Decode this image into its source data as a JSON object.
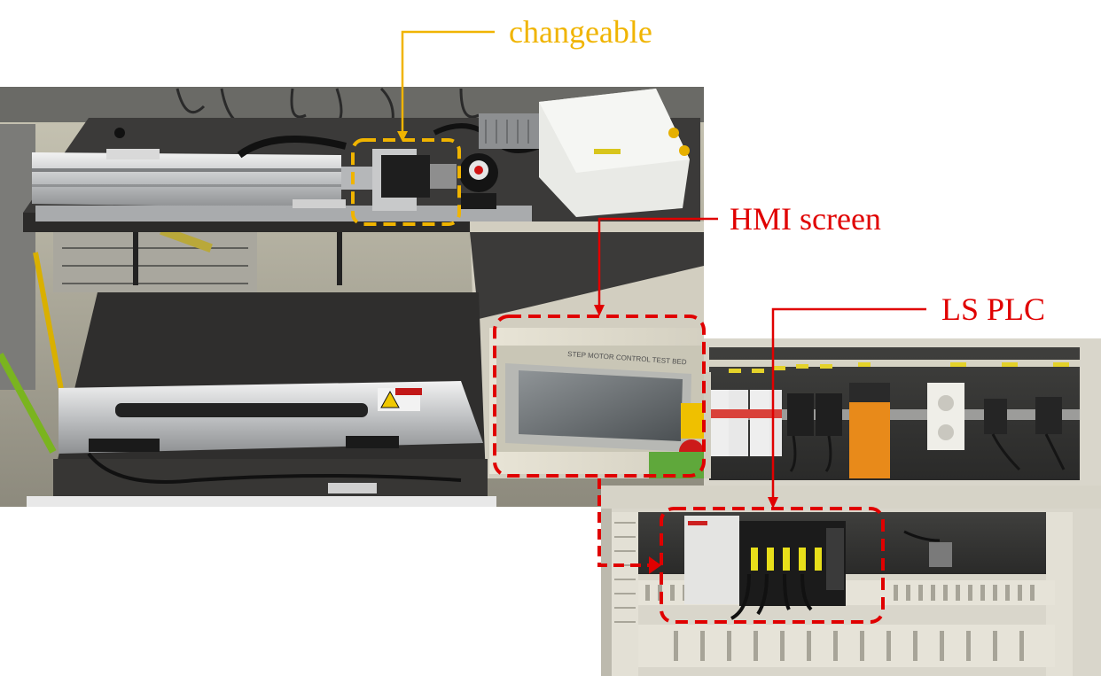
{
  "annotations": {
    "changeable": {
      "label": "changeable",
      "color": "#f0b400"
    },
    "hmi_screen": {
      "label": "HMI screen",
      "color": "#e00000"
    },
    "ls_plc": {
      "label": "LS PLC",
      "color": "#e00000"
    }
  },
  "photo": {
    "left_subject": "step-motor-test-bed",
    "right_subject": "electrical-control-cabinet",
    "hmi_bezel_text": "STEP MOTOR CONTROL TEST BED"
  }
}
